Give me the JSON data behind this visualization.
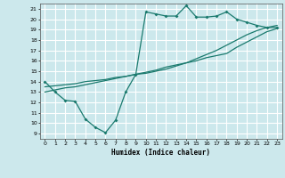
{
  "bg_color": "#cce8ec",
  "grid_color": "#ffffff",
  "line_color": "#1a7a6e",
  "xlabel": "Humidex (Indice chaleur)",
  "xlim": [
    -0.5,
    23.5
  ],
  "ylim": [
    8.5,
    21.5
  ],
  "xticks": [
    0,
    1,
    2,
    3,
    4,
    5,
    6,
    7,
    8,
    9,
    10,
    11,
    12,
    13,
    14,
    15,
    16,
    17,
    18,
    19,
    20,
    21,
    22,
    23
  ],
  "yticks": [
    9,
    10,
    11,
    12,
    13,
    14,
    15,
    16,
    17,
    18,
    19,
    20,
    21
  ],
  "curve1_x": [
    0,
    1,
    2,
    3,
    4,
    5,
    6,
    7,
    8,
    9,
    10,
    11,
    12,
    13,
    14,
    15,
    16,
    17,
    18,
    19,
    20,
    21,
    22,
    23
  ],
  "curve1_y": [
    14.0,
    13.0,
    12.2,
    12.1,
    10.4,
    9.6,
    9.1,
    10.3,
    13.0,
    14.7,
    20.7,
    20.5,
    20.3,
    20.3,
    21.3,
    20.2,
    20.2,
    20.3,
    20.7,
    20.0,
    19.7,
    19.4,
    19.2,
    19.2
  ],
  "curve2_x": [
    0,
    1,
    2,
    3,
    4,
    5,
    6,
    7,
    8,
    9,
    10,
    11,
    12,
    13,
    14,
    15,
    16,
    17,
    18,
    19,
    20,
    21,
    22,
    23
  ],
  "curve2_y": [
    13.0,
    13.2,
    13.4,
    13.5,
    13.7,
    13.9,
    14.1,
    14.3,
    14.5,
    14.7,
    14.9,
    15.1,
    15.4,
    15.6,
    15.8,
    16.0,
    16.3,
    16.5,
    16.7,
    17.3,
    17.8,
    18.3,
    18.8,
    19.1
  ],
  "curve3_x": [
    0,
    1,
    2,
    3,
    4,
    5,
    6,
    7,
    8,
    9,
    10,
    11,
    12,
    13,
    14,
    15,
    16,
    17,
    18,
    19,
    20,
    21,
    22,
    23
  ],
  "curve3_y": [
    13.5,
    13.6,
    13.7,
    13.8,
    14.0,
    14.1,
    14.2,
    14.4,
    14.5,
    14.7,
    14.8,
    15.0,
    15.2,
    15.5,
    15.8,
    16.2,
    16.6,
    17.0,
    17.5,
    18.0,
    18.5,
    18.9,
    19.2,
    19.4
  ]
}
